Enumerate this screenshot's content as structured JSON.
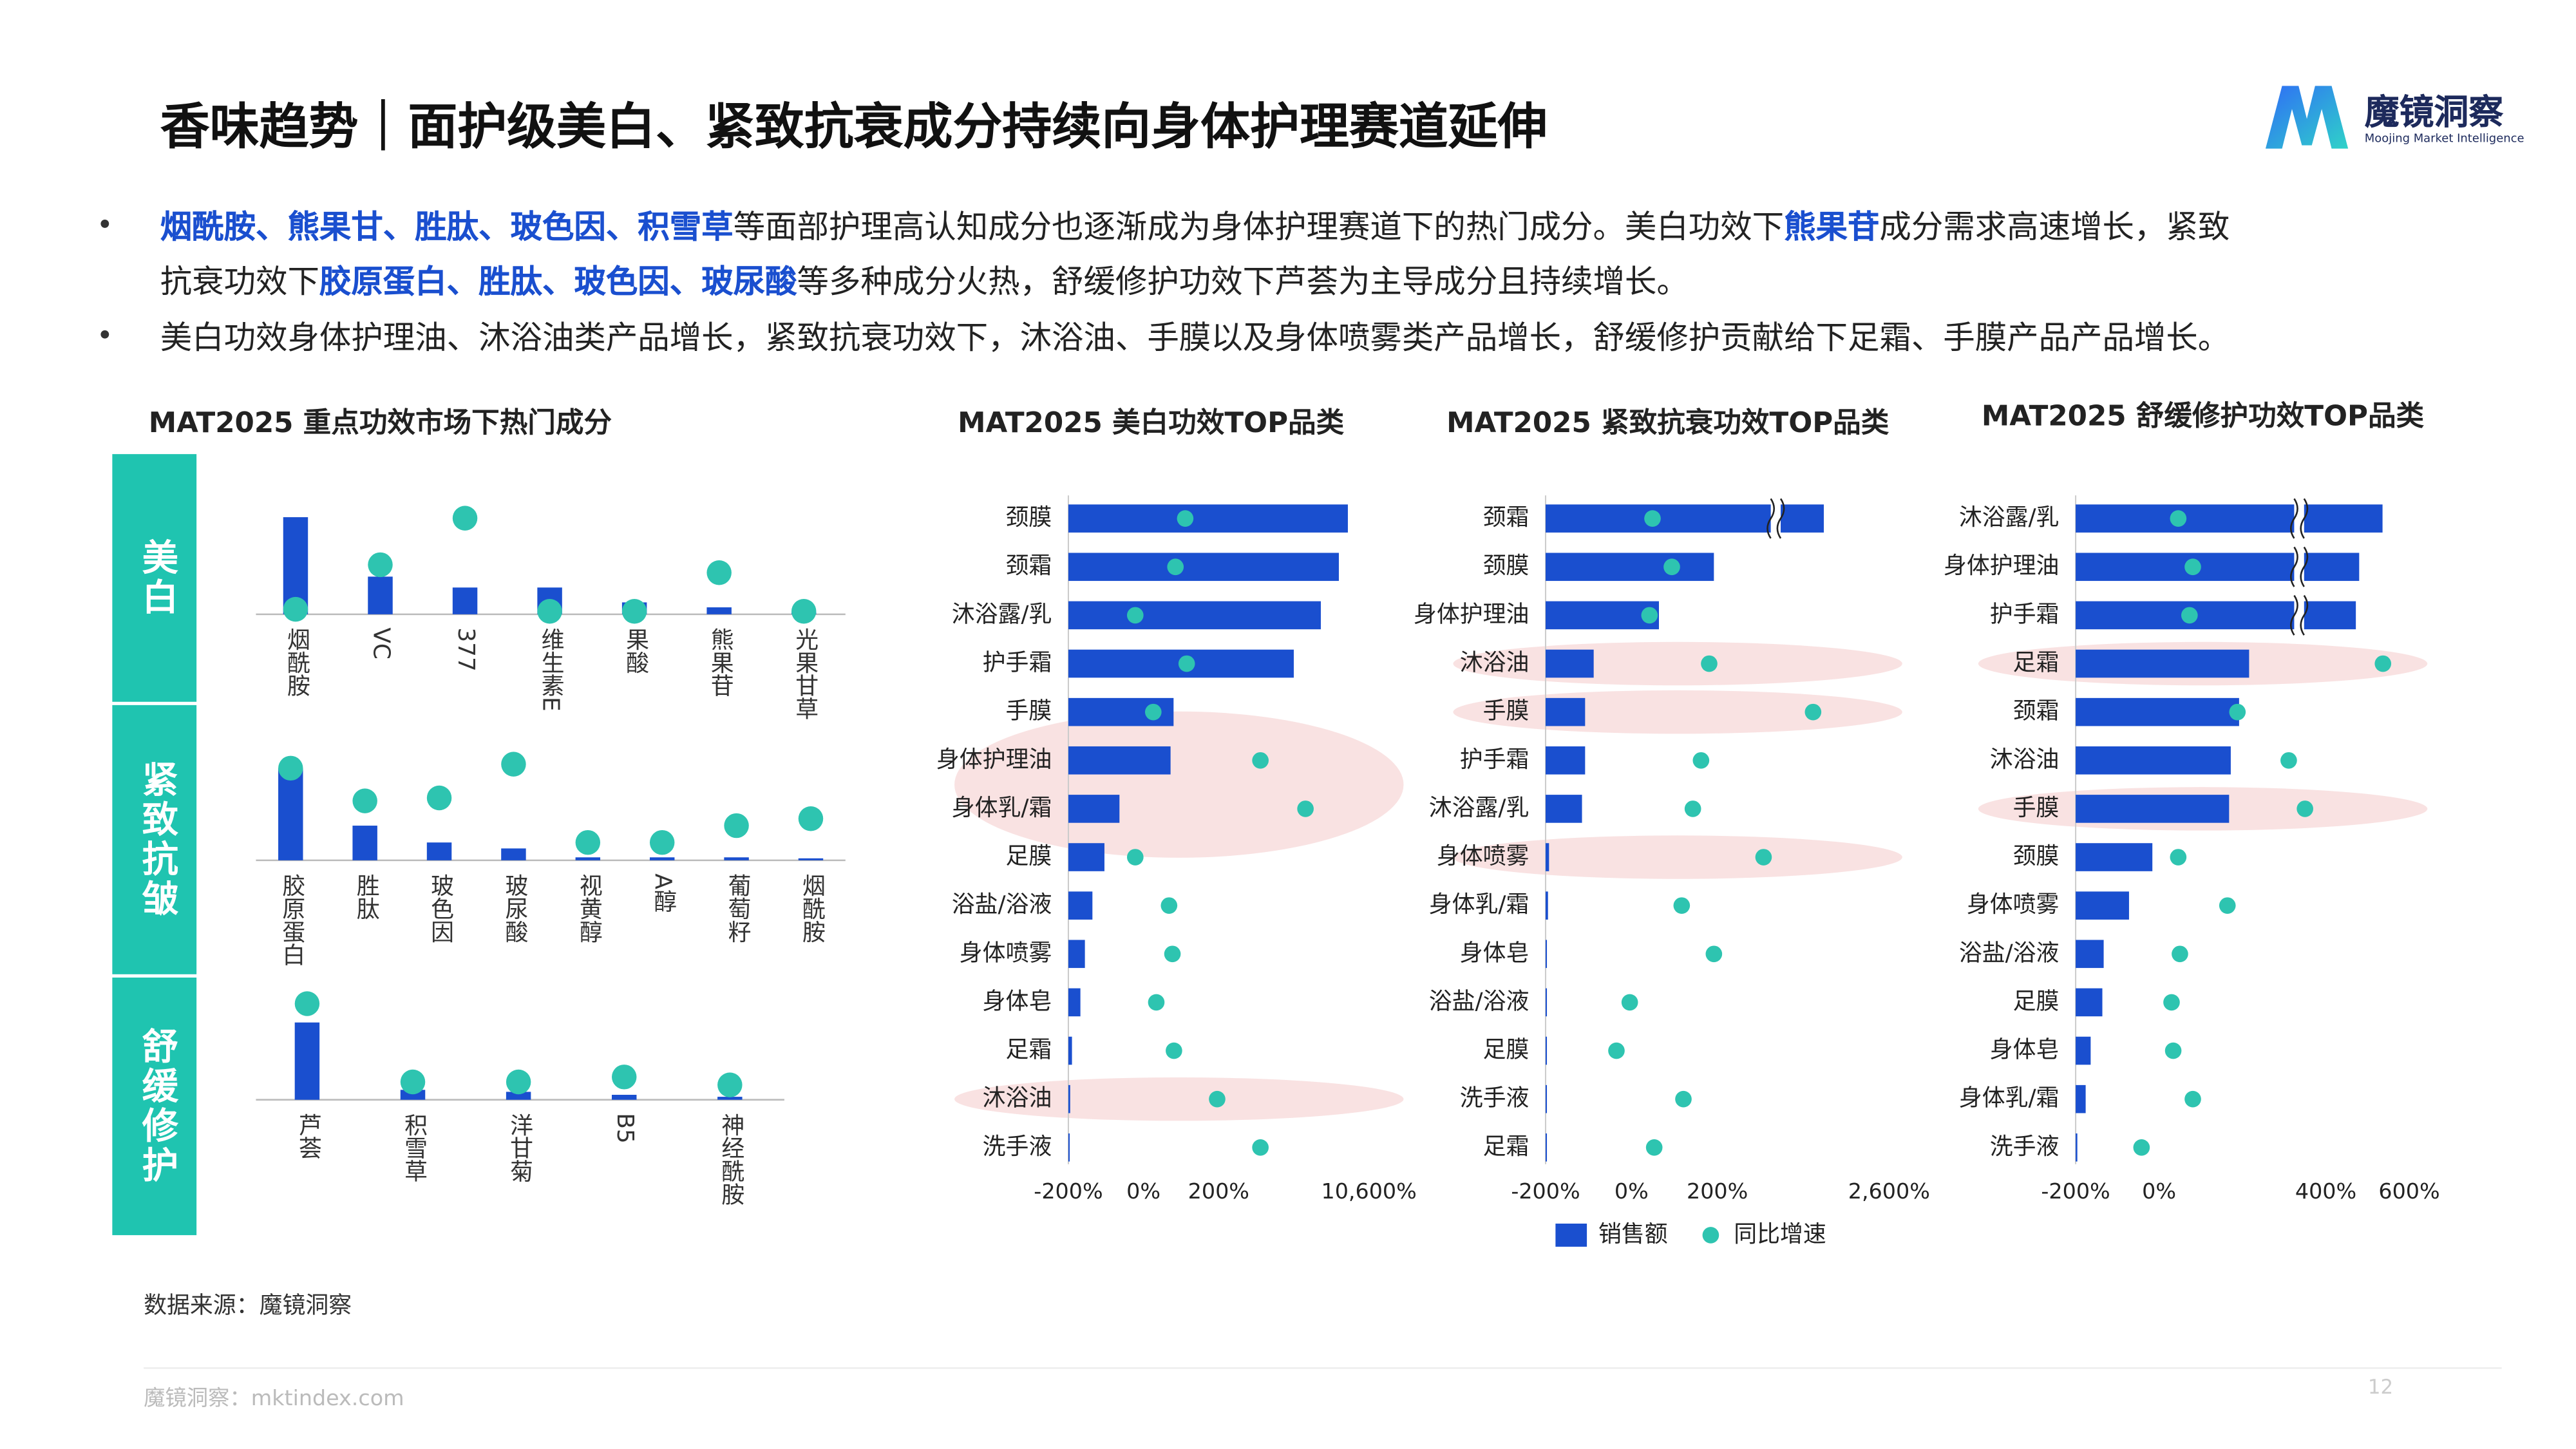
{
  "header": {
    "title": "香味趋势｜面护级美白、紧致抗衰成分持续向身体护理赛道延伸",
    "logo_name": "魔镜洞察",
    "logo_tagline": "Moojing Market Intelligence"
  },
  "bullets": [
    {
      "lines": [
        [
          {
            "text": "烟酰胺、熊果甘、胜肽、玻色因、积雪草",
            "bold": true
          },
          {
            "text": "等面部护理高认知成分也逐渐成为身体护理赛道下的热门成分。美白功效下"
          },
          {
            "text": "熊果苷",
            "bold": true
          },
          {
            "text": "成分需求高速增长，紧致"
          }
        ],
        [
          {
            "text": "抗衰功效下"
          },
          {
            "text": "胶原蛋白、胜肽、玻色因、玻尿酸",
            "bold": true
          },
          {
            "text": "等多种成分火热，舒缓修护功效下芦荟为主导成分且持续增长。"
          }
        ]
      ]
    },
    {
      "lines": [
        [
          {
            "text": "美白功效身体护理油、沐浴油类产品增长，紧致抗衰功效下，沐浴油、手膜以及身体喷雾类产品增长，舒缓修护贡献给下足霜、手膜产品产品增长。"
          }
        ]
      ]
    }
  ],
  "footer": {
    "source": "数据来源：魔镜洞察",
    "site": "魔镜洞察：mktindex.com",
    "page": 12
  },
  "chart_data": [
    {
      "type": "ingredient-groups",
      "title": "MAT2025 重点功效市场下热门成分",
      "ylim": [
        0,
        100
      ],
      "bar_color": "#1a4fcf",
      "dot_color": "#2ec4b0",
      "groups": [
        {
          "label": "美白",
          "categories": [
            "烟酰胺",
            "VC",
            "377",
            "维生素E",
            "果酸",
            "熊果苷",
            "光果甘草"
          ],
          "sales": [
            98,
            38,
            27,
            27,
            12,
            7,
            2
          ],
          "growth": [
            5,
            50,
            97,
            3,
            3,
            42,
            3
          ]
        },
        {
          "label": "紧致抗皱",
          "categories": [
            "胶原蛋白",
            "胜肽",
            "玻色因",
            "玻尿酸",
            "视黄醇",
            "A醇",
            "葡萄籽",
            "烟酰胺"
          ],
          "sales": [
            93,
            35,
            18,
            12,
            3,
            3,
            3,
            2
          ],
          "growth": [
            93,
            60,
            63,
            97,
            18,
            18,
            35,
            42
          ]
        },
        {
          "label": "舒缓修护",
          "categories": [
            "芦荟",
            "积雪草",
            "洋甘菊",
            "B5",
            "神经酰胺"
          ],
          "sales": [
            78,
            10,
            8,
            5,
            3
          ],
          "growth": [
            97,
            18,
            18,
            23,
            15
          ]
        }
      ]
    },
    {
      "type": "bar-dot",
      "title": "MAT2025 美白功效TOP品类",
      "categories": [
        "颈膜",
        "颈霜",
        "沐浴露/乳",
        "护手霜",
        "手膜",
        "身体护理油",
        "身体乳/霜",
        "足膜",
        "浴盐/浴液",
        "身体喷雾",
        "身体皂",
        "足霜",
        "沐浴油",
        "洗手液"
      ],
      "series": [
        {
          "color": "#1a4fcf",
          "axis": "x2",
          "values": [
            93,
            90,
            84,
            75,
            35,
            34,
            17,
            12,
            8,
            5.5,
            4,
            1.2,
            0.6,
            0.3
          ]
        },
        {
          "color": "#2ec4b0",
          "values": [
            111,
            85,
            -22,
            115,
            26,
            3090,
            6209,
            -22,
            68,
            77,
            34,
            81,
            196,
            3090
          ]
        }
      ],
      "xlim": [
        -200,
        10600
      ],
      "xticks": [
        {
          "value": -200,
          "label": "-200%"
        },
        {
          "value": 0,
          "label": "0%"
        },
        {
          "value": 200,
          "label": "200%"
        },
        {
          "value": 10600,
          "label": "10,600%"
        }
      ],
      "x2lim": [
        0,
        100
      ],
      "highlight": [
        [
          5,
          6
        ],
        [
          12,
          12
        ]
      ],
      "bar_break": []
    },
    {
      "type": "bar-dot",
      "title": "MAT2025 紧致抗衰功效TOP品类",
      "categories": [
        "颈霜",
        "颈膜",
        "身体护理油",
        "沐浴油",
        "手膜",
        "护手霜",
        "沐浴露/乳",
        "身体喷雾",
        "身体乳/霜",
        "身体皂",
        "浴盐/浴液",
        "足膜",
        "洗手液",
        "足霜"
      ],
      "series": [
        {
          "name": "销售额",
          "color": "#1a4fcf",
          "axis": "x2",
          "values": [
            81,
            49,
            33,
            14,
            11.5,
            11.5,
            10.6,
            1,
            0.7,
            0.3,
            0.2,
            0.2,
            0.2,
            0.2
          ]
        },
        {
          "name": "同比增速",
          "color": "#2ec4b0",
          "values": [
            49,
            94,
            42,
            181,
            1538,
            162,
            143,
            846,
            117,
            192,
            -4,
            -35,
            121,
            53
          ]
        }
      ],
      "xlim": [
        -200,
        2600
      ],
      "xticks": [
        {
          "value": -200,
          "label": "-200%"
        },
        {
          "value": 0,
          "label": "0%"
        },
        {
          "value": 200,
          "label": "200%"
        },
        {
          "value": 2600,
          "label": "2,600%"
        }
      ],
      "x2lim": [
        0,
        100
      ],
      "highlight": [
        [
          3,
          3
        ],
        [
          4,
          4
        ],
        [
          7,
          7
        ]
      ],
      "bar_break": [
        0
      ]
    },
    {
      "type": "bar-dot",
      "title": "MAT2025 舒缓修护功效TOP品类",
      "categories": [
        "沐浴露/乳",
        "身体护理油",
        "护手霜",
        "足霜",
        "颈霜",
        "沐浴油",
        "手膜",
        "颈膜",
        "身体喷雾",
        "浴盐/浴液",
        "足膜",
        "身体皂",
        "身体乳/霜",
        "洗手液"
      ],
      "series": [
        {
          "color": "#1a4fcf",
          "axis": "x2",
          "values": [
            92,
            85,
            84,
            52,
            49,
            46.5,
            46,
            23,
            16,
            8.4,
            8,
            4.5,
            3,
            0.5
          ]
        },
        {
          "color": "#2ec4b0",
          "values": [
            46,
            81,
            73,
            537,
            188,
            311,
            350,
            46,
            164,
            50,
            30,
            34,
            81,
            -42
          ]
        }
      ],
      "xlim": [
        -200,
        600
      ],
      "xticks": [
        {
          "value": -200,
          "label": "-200%"
        },
        {
          "value": 0,
          "label": "0%"
        },
        {
          "value": 400,
          "label": "400%"
        },
        {
          "value": 600,
          "label": "600%"
        }
      ],
      "x2lim": [
        0,
        100
      ],
      "highlight": [
        [
          3,
          3
        ],
        [
          6,
          6
        ]
      ],
      "bar_break": [
        0,
        1,
        2
      ]
    }
  ]
}
